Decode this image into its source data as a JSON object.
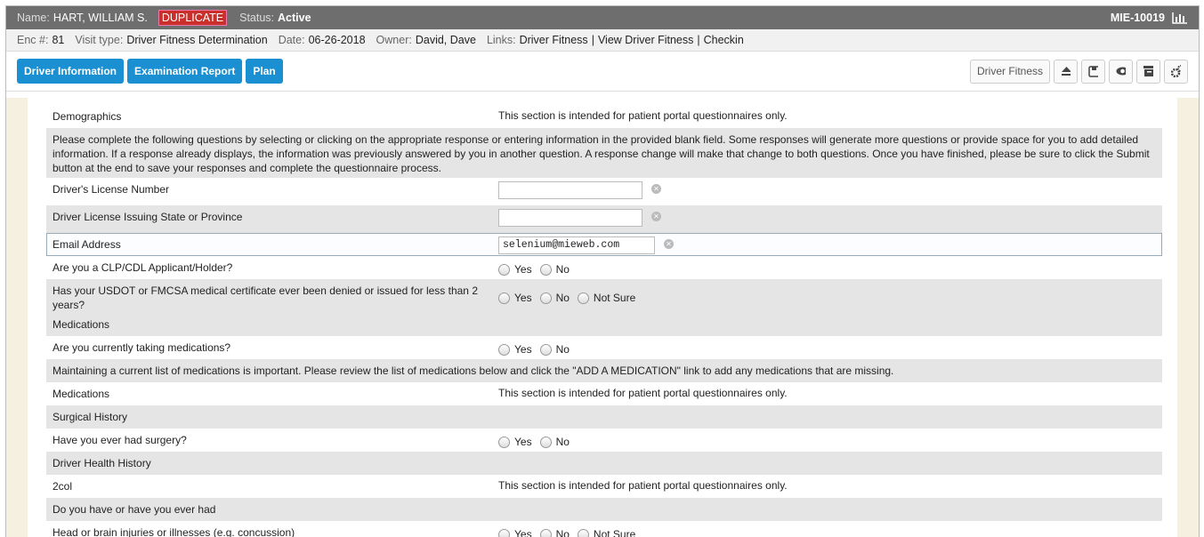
{
  "header": {
    "name_label": "Name:",
    "name": "HART, WILLIAM S.",
    "badge": "DUPLICATE",
    "status_label": "Status:",
    "status": "Active",
    "record_id": "MIE-10019"
  },
  "encounter": {
    "fields": [
      {
        "label": "Enc #:",
        "value": "81"
      },
      {
        "label": "Visit type:",
        "value": "Driver Fitness Determination"
      },
      {
        "label": "Date:",
        "value": "06-26-2018"
      },
      {
        "label": "Owner:",
        "value": "David, Dave"
      }
    ],
    "links_label": "Links:",
    "links": [
      "Driver Fitness",
      "View Driver Fitness",
      "Checkin"
    ],
    "link_separator": "|"
  },
  "toolbar": {
    "tabs": [
      "Driver Information",
      "Examination Report",
      "Plan"
    ],
    "action": "Driver Fitness"
  },
  "form": {
    "rows": [
      {
        "label": "Demographics",
        "note": "This section is intended for patient portal questionnaires only."
      },
      {
        "text": "Please complete the following questions by selecting or clicking on the appropriate response or entering information in the provided blank field. Some responses will generate more questions or provide space for you to add detailed information. If a response already displays, the information was previously answered by you in another question. A response change will make that change to both questions. Once you have finished, please be sure to click the Submit button at the end to save your responses and complete the questionnaire process."
      },
      {
        "label": "Driver's License Number"
      },
      {
        "label": "Driver License Issuing State or Province"
      },
      {
        "label": "Email Address",
        "value": "selenium@mieweb.com"
      },
      {
        "label": "Are you a CLP/CDL Applicant/Holder?",
        "options": [
          "Yes",
          "No"
        ]
      },
      {
        "label": "Has your USDOT or FMCSA medical certificate ever been denied or issued for less than 2 years?",
        "options": [
          "Yes",
          "No",
          "Not Sure"
        ]
      },
      {
        "label": "Medications"
      },
      {
        "label": "Are you currently taking medications?",
        "options": [
          "Yes",
          "No"
        ]
      },
      {
        "text": "Maintaining a current list of medications is important. Please review the list of medications below and click the \"ADD A MEDICATION\" link to add any medications that are missing."
      },
      {
        "label": "Medications",
        "note": "This section is intended for patient portal questionnaires only."
      },
      {
        "label": "Surgical History"
      },
      {
        "label": "Have you ever had surgery?",
        "options": [
          "Yes",
          "No"
        ]
      },
      {
        "label": "Driver Health History"
      },
      {
        "label": "2col",
        "note": "This section is intended for patient portal questionnaires only."
      },
      {
        "label": "Do you have or have you ever had"
      },
      {
        "label": "Head or brain injuries or illnesses (e.g. concussion)",
        "options": [
          "Yes",
          "No",
          "Not Sure"
        ]
      }
    ]
  }
}
